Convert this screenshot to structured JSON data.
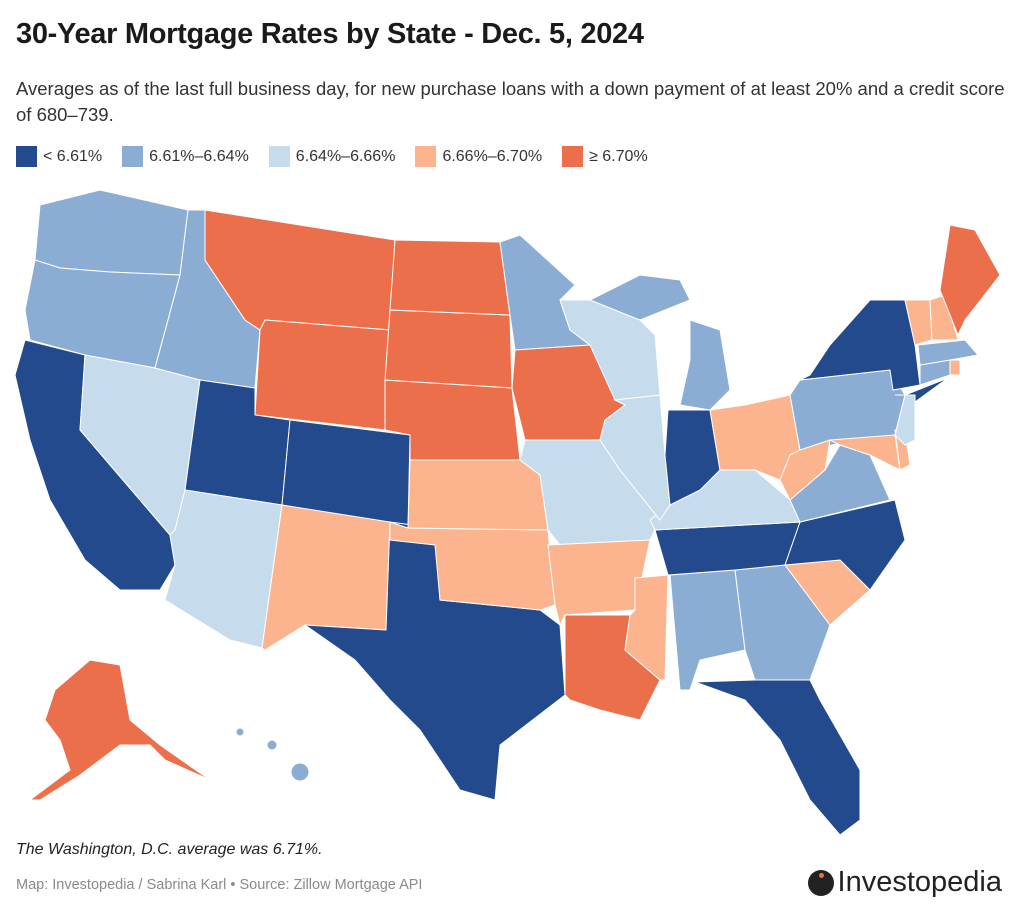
{
  "title": "30-Year Mortgage Rates by State - Dec. 5, 2024",
  "subtitle": "Averages as of the last full business day, for new purchase loans with a down payment of at least 20% and a credit score of 680–739.",
  "legend": [
    {
      "label": "< 6.61%",
      "color": "#234a8c"
    },
    {
      "label": "6.61%–6.64%",
      "color": "#8badd4"
    },
    {
      "label": "6.64%–6.66%",
      "color": "#c6dcec"
    },
    {
      "label": "6.66%–6.70%",
      "color": "#fcb48f"
    },
    {
      "label": "≥ 6.70%",
      "color": "#ec6f4b"
    }
  ],
  "chart_data": {
    "type": "choropleth",
    "title": "30-Year Mortgage Rates by State - Dec. 5, 2024",
    "bins": [
      "< 6.61%",
      "6.61%–6.64%",
      "6.64%–6.66%",
      "6.66%–6.70%",
      "≥ 6.70%"
    ],
    "state_bin": {
      "CA": 0,
      "UT": 0,
      "CO": 0,
      "TX": 0,
      "IN": 0,
      "TN": 0,
      "NC": 0,
      "FL": 0,
      "NY": 0,
      "WA": 1,
      "OR": 1,
      "ID": 1,
      "MN": 1,
      "MI": 1,
      "PA": 1,
      "VA": 1,
      "AL": 1,
      "GA": 1,
      "MA": 1,
      "CT": 1,
      "HI": 1,
      "NV": 2,
      "AZ": 2,
      "WI": 2,
      "IL": 2,
      "MO": 2,
      "KY": 2,
      "NJ": 2,
      "NM": 3,
      "KS": 3,
      "OK": 3,
      "AR": 3,
      "MS": 3,
      "OH": 3,
      "WV": 3,
      "MD": 3,
      "DE": 3,
      "SC": 3,
      "VT": 3,
      "NH": 3,
      "RI": 3,
      "MT": 4,
      "WY": 4,
      "ND": 4,
      "SD": 4,
      "NE": 4,
      "IA": 4,
      "LA": 4,
      "ME": 4,
      "AK": 4
    }
  },
  "note": "The Washington, D.C. average was 6.71%.",
  "credit": "Map: Investopedia / Sabrina Karl • Source: Zillow Mortgage API",
  "logo_text": "Investopedia"
}
